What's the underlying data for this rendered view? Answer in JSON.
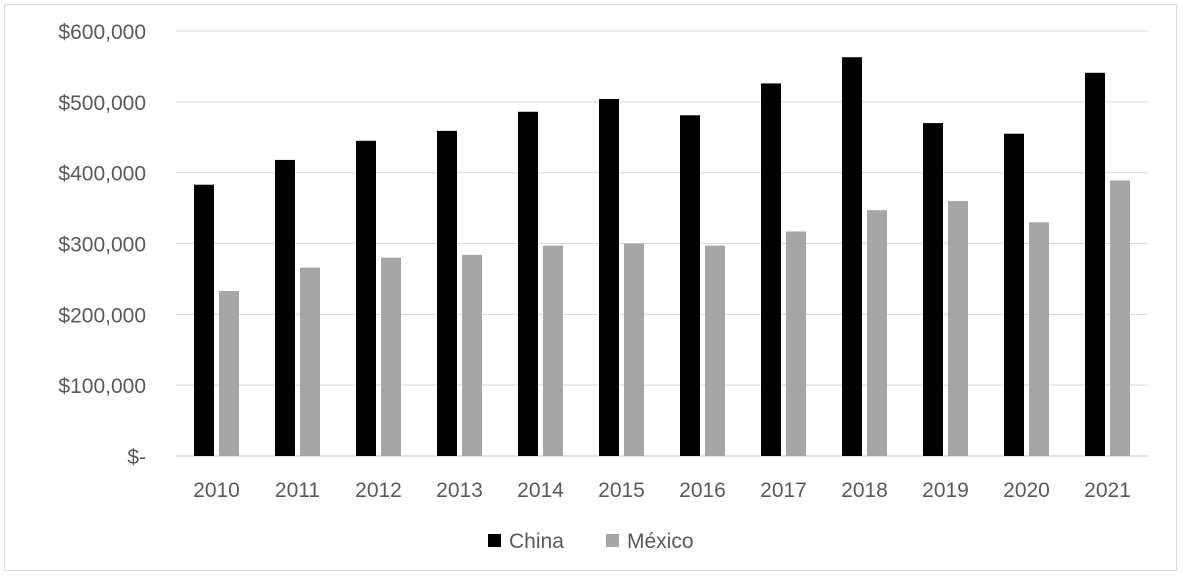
{
  "chart_data": {
    "type": "bar",
    "title": "",
    "xlabel": "",
    "ylabel": "",
    "categories": [
      "2010",
      "2011",
      "2012",
      "2013",
      "2014",
      "2015",
      "2016",
      "2017",
      "2018",
      "2019",
      "2020",
      "2021"
    ],
    "series": [
      {
        "name": "China",
        "color": "#000000",
        "values": [
          383000,
          418000,
          445000,
          459000,
          486000,
          504000,
          481000,
          526000,
          563000,
          470000,
          455000,
          541000
        ]
      },
      {
        "name": "México",
        "color": "#a6a6a6",
        "values": [
          233000,
          266000,
          280000,
          284000,
          297000,
          300000,
          297000,
          317000,
          347000,
          360000,
          330000,
          389000
        ]
      }
    ],
    "ylim": [
      0,
      600000
    ],
    "yticks": [
      0,
      100000,
      200000,
      300000,
      400000,
      500000,
      600000
    ],
    "ytick_labels": [
      "$-",
      "$100,000",
      "$200,000",
      "$300,000",
      "$400,000",
      "$500,000",
      "$600,000"
    ],
    "grid": true,
    "legend_position": "bottom",
    "gridline_color": "#d9d9d9"
  }
}
